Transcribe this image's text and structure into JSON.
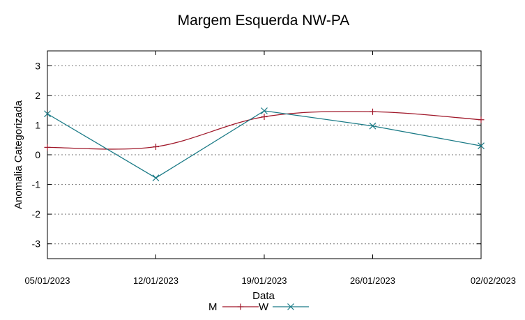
{
  "chart_data": {
    "type": "line",
    "title": "Margem Esquerda NW-PA",
    "xlabel": "Data",
    "ylabel": "Anomalia Categorizada",
    "categories": [
      "05/01/2023",
      "12/01/2023",
      "19/01/2023",
      "26/01/2023",
      "02/02/2023"
    ],
    "ylim": [
      -3.5,
      3.5
    ],
    "yticks": [
      -3,
      -2,
      -1,
      0,
      1,
      2,
      3
    ],
    "grid": true,
    "legend_position": "bottom",
    "series": [
      {
        "name": "M",
        "color": "#a0182a",
        "marker": "plus",
        "smooth": true,
        "values": [
          0.25,
          0.27,
          1.28,
          1.45,
          1.18
        ]
      },
      {
        "name": "W",
        "color": "#1a7a86",
        "marker": "cross",
        "smooth": false,
        "values": [
          1.38,
          -0.78,
          1.48,
          0.97,
          0.3
        ]
      }
    ]
  }
}
